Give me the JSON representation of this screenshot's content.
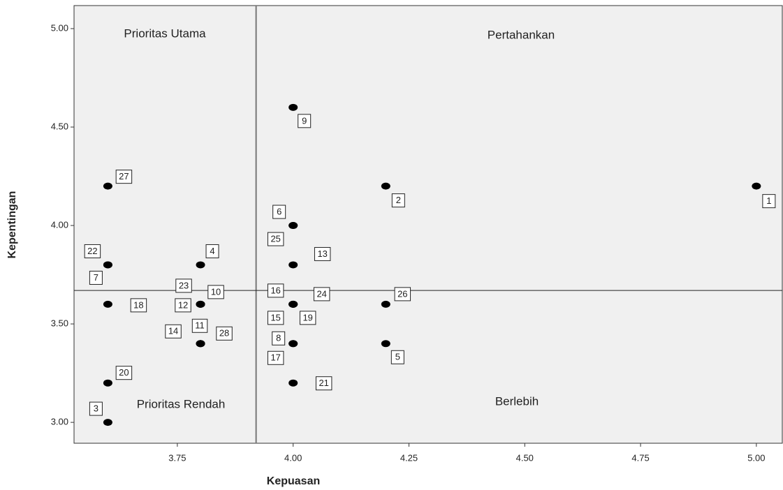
{
  "chart_data": {
    "type": "scatter",
    "x_label": "Kepuasan",
    "y_label": "Kepentingan",
    "xlim": [
      3.527,
      5.056
    ],
    "ylim": [
      2.894,
      5.117
    ],
    "xticks": [
      3.75,
      {
        "value": 4.0,
        "label": "4.00"
      },
      4.25,
      {
        "value": 4.5,
        "label": "4.50"
      },
      4.75,
      {
        "value": 5.0,
        "label": "5.00"
      }
    ],
    "yticks": [
      {
        "value": 3.0,
        "label": "3.00"
      },
      {
        "value": 3.5,
        "label": "3.50"
      },
      {
        "value": 4.0,
        "label": "4.00"
      },
      {
        "value": 4.5,
        "label": "4.50"
      },
      {
        "value": 5.0,
        "label": "5.00"
      }
    ],
    "vline": 3.92,
    "hline": 3.67,
    "annotations": [
      "Prioritas Utama",
      "Pertahankan",
      "Prioritas Rendah",
      "Berlebih"
    ],
    "color": "#000000",
    "labels": [
      "1",
      "2",
      "3",
      "4",
      "5",
      "6",
      "7",
      "8",
      "9",
      "10",
      "11",
      "12",
      "13",
      "14",
      "15",
      "16",
      "17",
      "18",
      "19",
      "20",
      "21",
      "22",
      "23",
      "24",
      "25",
      "26",
      "27",
      "28"
    ],
    "x": [
      5.0,
      4.2,
      3.6,
      3.8,
      4.2,
      4.0,
      3.6,
      4.0,
      4.0,
      3.8,
      3.8,
      3.8,
      4.0,
      3.8,
      4.0,
      4.0,
      4.0,
      3.6,
      4.0,
      3.6,
      4.0,
      3.6,
      3.8,
      4.0,
      4.0,
      4.2,
      3.6,
      3.8
    ],
    "y": [
      4.2,
      4.2,
      3.0,
      3.8,
      3.4,
      4.0,
      3.8,
      3.4,
      4.6,
      3.6,
      3.4,
      3.6,
      3.8,
      3.4,
      3.6,
      3.6,
      3.4,
      3.6,
      3.6,
      3.2,
      3.2,
      3.8,
      3.6,
      3.6,
      4.0,
      3.6,
      4.2,
      3.4
    ]
  }
}
